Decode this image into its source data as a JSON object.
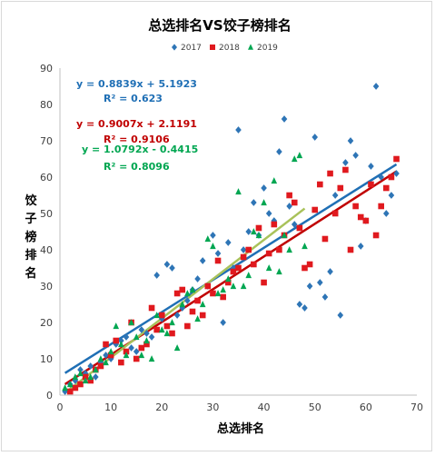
{
  "chart_data": {
    "type": "scatter",
    "title": "总选排名VS饺子榜排名",
    "xlabel": "总选排名",
    "ylabel": "饺子榜排名",
    "xlim": [
      0,
      70
    ],
    "ylim": [
      0,
      90
    ],
    "x_ticks": [
      0,
      10,
      20,
      30,
      40,
      50,
      60,
      70
    ],
    "y_ticks": [
      0,
      10,
      20,
      30,
      40,
      50,
      60,
      70,
      80,
      90
    ],
    "grid": false,
    "legend_position": "top-right",
    "series": [
      {
        "name": "2017",
        "color": "#2e75b6",
        "marker": "diamond",
        "trend_color": "#1f6fb5",
        "trendline": {
          "slope": 0.8839,
          "intercept": 5.1923,
          "x_range": [
            1,
            66
          ]
        },
        "equation": "y = 0.8839x + 5.1923",
        "r2": "R² = 0.623",
        "points": [
          [
            1,
            1
          ],
          [
            2,
            3
          ],
          [
            3,
            4
          ],
          [
            4,
            7
          ],
          [
            5,
            6
          ],
          [
            6,
            8
          ],
          [
            7,
            5
          ],
          [
            8,
            9
          ],
          [
            9,
            11
          ],
          [
            10,
            10
          ],
          [
            11,
            14
          ],
          [
            12,
            15
          ],
          [
            13,
            16
          ],
          [
            14,
            13
          ],
          [
            15,
            12
          ],
          [
            16,
            18
          ],
          [
            17,
            17
          ],
          [
            18,
            16
          ],
          [
            19,
            33
          ],
          [
            20,
            21
          ],
          [
            21,
            36
          ],
          [
            22,
            35
          ],
          [
            23,
            22
          ],
          [
            24,
            24
          ],
          [
            25,
            26
          ],
          [
            26,
            29
          ],
          [
            27,
            32
          ],
          [
            28,
            37
          ],
          [
            29,
            30
          ],
          [
            30,
            44
          ],
          [
            31,
            39
          ],
          [
            32,
            20
          ],
          [
            33,
            42
          ],
          [
            34,
            35
          ],
          [
            35,
            73
          ],
          [
            36,
            40
          ],
          [
            37,
            45
          ],
          [
            38,
            53
          ],
          [
            39,
            44
          ],
          [
            40,
            57
          ],
          [
            41,
            50
          ],
          [
            42,
            48
          ],
          [
            43,
            67
          ],
          [
            44,
            76
          ],
          [
            45,
            52
          ],
          [
            46,
            47
          ],
          [
            47,
            25
          ],
          [
            48,
            24
          ],
          [
            49,
            30
          ],
          [
            50,
            71
          ],
          [
            51,
            31
          ],
          [
            52,
            27
          ],
          [
            53,
            34
          ],
          [
            54,
            55
          ],
          [
            55,
            22
          ],
          [
            56,
            64
          ],
          [
            57,
            70
          ],
          [
            58,
            66
          ],
          [
            59,
            41
          ],
          [
            60,
            48
          ],
          [
            61,
            63
          ],
          [
            62,
            85
          ],
          [
            63,
            60
          ],
          [
            64,
            50
          ],
          [
            65,
            55
          ],
          [
            66,
            61
          ]
        ]
      },
      {
        "name": "2018",
        "color": "#e0191e",
        "marker": "square",
        "trend_color": "#c00000",
        "trendline": {
          "slope": 0.9007,
          "intercept": 2.1191,
          "x_range": [
            1,
            66
          ]
        },
        "equation": "y = 0.9007x + 2.1191",
        "r2": "R² = 0.9106",
        "points": [
          [
            2,
            1
          ],
          [
            3,
            2
          ],
          [
            4,
            3
          ],
          [
            5,
            5
          ],
          [
            6,
            4
          ],
          [
            7,
            7
          ],
          [
            8,
            8
          ],
          [
            9,
            14
          ],
          [
            10,
            11
          ],
          [
            11,
            15
          ],
          [
            12,
            9
          ],
          [
            13,
            12
          ],
          [
            14,
            20
          ],
          [
            15,
            10
          ],
          [
            16,
            13
          ],
          [
            17,
            14
          ],
          [
            18,
            24
          ],
          [
            19,
            18
          ],
          [
            20,
            22
          ],
          [
            21,
            19
          ],
          [
            22,
            17
          ],
          [
            23,
            28
          ],
          [
            24,
            29
          ],
          [
            25,
            19
          ],
          [
            26,
            23
          ],
          [
            27,
            26
          ],
          [
            28,
            22
          ],
          [
            29,
            30
          ],
          [
            30,
            28
          ],
          [
            31,
            37
          ],
          [
            32,
            27
          ],
          [
            33,
            31
          ],
          [
            34,
            34
          ],
          [
            35,
            35
          ],
          [
            36,
            38
          ],
          [
            37,
            40
          ],
          [
            38,
            36
          ],
          [
            39,
            46
          ],
          [
            40,
            31
          ],
          [
            41,
            39
          ],
          [
            42,
            47
          ],
          [
            43,
            40
          ],
          [
            44,
            44
          ],
          [
            45,
            55
          ],
          [
            46,
            53
          ],
          [
            47,
            46
          ],
          [
            48,
            35
          ],
          [
            49,
            36
          ],
          [
            50,
            51
          ],
          [
            51,
            58
          ],
          [
            52,
            43
          ],
          [
            53,
            61
          ],
          [
            54,
            50
          ],
          [
            55,
            57
          ],
          [
            56,
            62
          ],
          [
            57,
            40
          ],
          [
            58,
            52
          ],
          [
            59,
            49
          ],
          [
            60,
            48
          ],
          [
            61,
            58
          ],
          [
            62,
            44
          ],
          [
            63,
            52
          ],
          [
            64,
            57
          ],
          [
            65,
            60
          ],
          [
            66,
            65
          ]
        ]
      },
      {
        "name": "2019",
        "color": "#00a651",
        "marker": "triangle",
        "trend_color": "#a9c25a",
        "trendline": {
          "slope": 1.0792,
          "intercept": -0.4415,
          "x_range": [
            1,
            48
          ]
        },
        "equation": "y = 1.0792x - 0.4415",
        "r2": "R² = 0.8096",
        "points": [
          [
            1,
            2
          ],
          [
            2,
            3
          ],
          [
            3,
            5
          ],
          [
            4,
            6
          ],
          [
            5,
            4
          ],
          [
            6,
            5
          ],
          [
            7,
            7
          ],
          [
            8,
            10
          ],
          [
            9,
            9
          ],
          [
            10,
            12
          ],
          [
            11,
            19
          ],
          [
            12,
            14
          ],
          [
            13,
            11
          ],
          [
            14,
            20
          ],
          [
            15,
            16
          ],
          [
            16,
            11
          ],
          [
            17,
            15
          ],
          [
            18,
            10
          ],
          [
            19,
            22
          ],
          [
            20,
            18
          ],
          [
            21,
            17
          ],
          [
            22,
            20
          ],
          [
            23,
            13
          ],
          [
            24,
            25
          ],
          [
            25,
            28
          ],
          [
            26,
            29
          ],
          [
            27,
            21
          ],
          [
            28,
            25
          ],
          [
            29,
            43
          ],
          [
            30,
            41
          ],
          [
            31,
            28
          ],
          [
            32,
            29
          ],
          [
            33,
            32
          ],
          [
            34,
            30
          ],
          [
            35,
            56
          ],
          [
            36,
            30
          ],
          [
            37,
            33
          ],
          [
            38,
            45
          ],
          [
            39,
            44
          ],
          [
            40,
            53
          ],
          [
            41,
            35
          ],
          [
            42,
            59
          ],
          [
            43,
            34
          ],
          [
            44,
            44
          ],
          [
            45,
            40
          ],
          [
            46,
            65
          ],
          [
            47,
            66
          ],
          [
            48,
            41
          ]
        ]
      }
    ]
  }
}
